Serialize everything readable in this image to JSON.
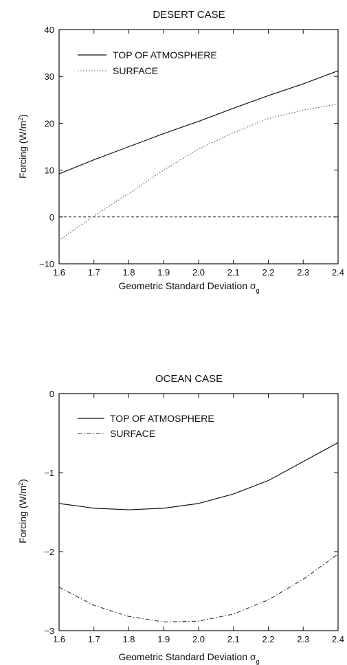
{
  "chart_data": [
    {
      "type": "line",
      "title": "DESERT CASE",
      "xlabel": "Geometric Standard Deviation σg",
      "xlabel_main": "Geometric Standard Deviation σ",
      "xlabel_sub": "g",
      "ylabel": "Forcing (W/m2)",
      "ylabel_main": "Forcing (W/m",
      "ylabel_sup": "2",
      "ylabel_close": ")",
      "xlim": [
        1.6,
        2.4
      ],
      "ylim": [
        -10,
        40
      ],
      "x_ticks": [
        1.6,
        1.7,
        1.8,
        1.9,
        2.0,
        2.1,
        2.2,
        2.3,
        2.4
      ],
      "x_tick_labels": [
        "1.6",
        "1.7",
        "1.8",
        "1.9",
        "2.0",
        "2.1",
        "2.2",
        "2.3",
        "2.4"
      ],
      "y_ticks": [
        -10,
        0,
        10,
        20,
        30,
        40
      ],
      "y_tick_labels": [
        "−10",
        "0",
        "10",
        "20",
        "30",
        "40"
      ],
      "reference_line_y": 0,
      "legend_position": "top-left",
      "series": [
        {
          "name": "TOP OF ATMOSPHERE",
          "style": "solid",
          "color": "#111111",
          "x": [
            1.6,
            1.7,
            1.8,
            1.9,
            2.0,
            2.1,
            2.2,
            2.3,
            2.4
          ],
          "values": [
            9.2,
            12.2,
            15.0,
            17.8,
            20.4,
            23.2,
            25.9,
            28.4,
            31.2
          ]
        },
        {
          "name": "SURFACE",
          "style": "dotted",
          "color": "#555555",
          "x": [
            1.6,
            1.7,
            1.8,
            1.9,
            2.0,
            2.1,
            2.2,
            2.3,
            2.4
          ],
          "values": [
            -5.0,
            0.2,
            5.0,
            10.0,
            14.5,
            18.0,
            21.0,
            22.8,
            24.1
          ]
        }
      ]
    },
    {
      "type": "line",
      "title": "OCEAN CASE",
      "xlabel": "Geometric Standard Deviation σg",
      "xlabel_main": "Geometric Standard Deviation σ",
      "xlabel_sub": "g",
      "ylabel": "Forcing (W/m2)",
      "ylabel_main": "Forcing (W/m",
      "ylabel_sup": "2",
      "ylabel_close": ")",
      "xlim": [
        1.6,
        2.4
      ],
      "ylim": [
        -3,
        0
      ],
      "x_ticks": [
        1.6,
        1.7,
        1.8,
        1.9,
        2.0,
        2.1,
        2.2,
        2.3,
        2.4
      ],
      "x_tick_labels": [
        "1.6",
        "1.7",
        "1.8",
        "1.9",
        "2.0",
        "2.1",
        "2.2",
        "2.3",
        "2.4"
      ],
      "y_ticks": [
        -3,
        -2,
        -1,
        0
      ],
      "y_tick_labels": [
        "−3",
        "−2",
        "−1",
        "0"
      ],
      "legend_position": "top-left",
      "series": [
        {
          "name": "TOP OF ATMOSPHERE",
          "style": "solid",
          "color": "#111111",
          "x": [
            1.6,
            1.7,
            1.8,
            1.9,
            2.0,
            2.1,
            2.2,
            2.3,
            2.4
          ],
          "values": [
            -1.39,
            -1.45,
            -1.47,
            -1.45,
            -1.39,
            -1.27,
            -1.1,
            -0.86,
            -0.62
          ]
        },
        {
          "name": "SURFACE",
          "style": "dashdot",
          "color": "#333333",
          "x": [
            1.6,
            1.7,
            1.8,
            1.9,
            2.0,
            2.1,
            2.2,
            2.3,
            2.4
          ],
          "values": [
            -2.45,
            -2.68,
            -2.82,
            -2.89,
            -2.88,
            -2.79,
            -2.61,
            -2.35,
            -2.03
          ]
        }
      ]
    }
  ]
}
